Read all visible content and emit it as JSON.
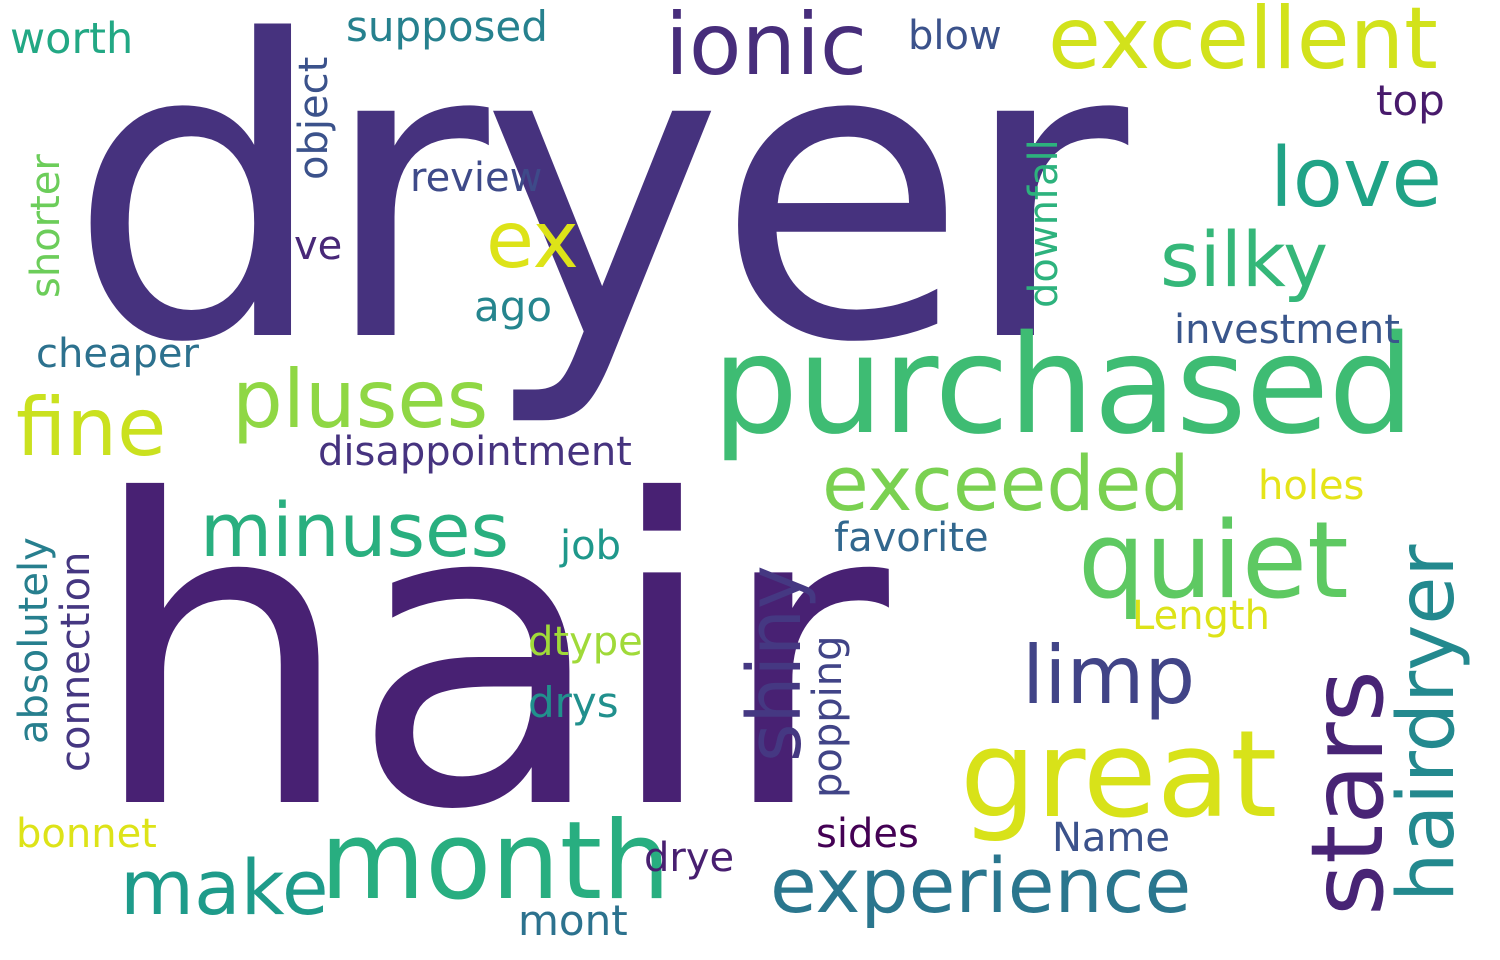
{
  "words": [
    {
      "id": "dryer",
      "text": "dryer",
      "color": "#46327e",
      "orientation": "horizontal"
    },
    {
      "id": "hair",
      "text": "hair",
      "color": "#482173",
      "orientation": "horizontal"
    },
    {
      "id": "purchased",
      "text": "purchased",
      "color": "#3ebc73",
      "orientation": "horizontal"
    },
    {
      "id": "ionic",
      "text": "ionic",
      "color": "#472d7b",
      "orientation": "horizontal"
    },
    {
      "id": "excellent",
      "text": "excellent",
      "color": "#d2e21b",
      "orientation": "horizontal"
    },
    {
      "id": "blow",
      "text": "blow",
      "color": "#3b528b",
      "orientation": "horizontal"
    },
    {
      "id": "supposed",
      "text": "supposed",
      "color": "#26818e",
      "orientation": "horizontal"
    },
    {
      "id": "worth",
      "text": "worth",
      "color": "#22a884",
      "orientation": "horizontal"
    },
    {
      "id": "object",
      "text": "object",
      "color": "#3b528b",
      "orientation": "vertical"
    },
    {
      "id": "top",
      "text": "top",
      "color": "#481a6c",
      "orientation": "horizontal"
    },
    {
      "id": "love",
      "text": "love",
      "color": "#20a386",
      "orientation": "horizontal"
    },
    {
      "id": "review",
      "text": "review",
      "color": "#3e4a89",
      "orientation": "horizontal"
    },
    {
      "id": "ex",
      "text": "ex",
      "color": "#dde318",
      "orientation": "horizontal"
    },
    {
      "id": "silky",
      "text": "silky",
      "color": "#35b779",
      "orientation": "horizontal"
    },
    {
      "id": "shorter",
      "text": "shorter",
      "color": "#6ccd5a",
      "orientation": "vertical"
    },
    {
      "id": "downfall",
      "text": "downfall",
      "color": "#2db27d",
      "orientation": "vertical"
    },
    {
      "id": "ve",
      "text": "ve",
      "color": "#482878",
      "orientation": "horizontal"
    },
    {
      "id": "ago",
      "text": "ago",
      "color": "#25858e",
      "orientation": "horizontal"
    },
    {
      "id": "investment",
      "text": "investment",
      "color": "#39568c",
      "orientation": "horizontal"
    },
    {
      "id": "cheaper",
      "text": "cheaper",
      "color": "#2c718e",
      "orientation": "horizontal"
    },
    {
      "id": "pluses",
      "text": "pluses",
      "color": "#8fd744",
      "orientation": "horizontal"
    },
    {
      "id": "fine",
      "text": "fine",
      "color": "#cae11f",
      "orientation": "horizontal"
    },
    {
      "id": "disappointment",
      "text": "disappointment",
      "color": "#46337f",
      "orientation": "horizontal"
    },
    {
      "id": "exceeded",
      "text": "exceeded",
      "color": "#7ad151",
      "orientation": "horizontal"
    },
    {
      "id": "holes",
      "text": "holes",
      "color": "#e5e419",
      "orientation": "horizontal"
    },
    {
      "id": "minuses",
      "text": "minuses",
      "color": "#29af7f",
      "orientation": "horizontal"
    },
    {
      "id": "quiet",
      "text": "quiet",
      "color": "#5ec962",
      "orientation": "horizontal"
    },
    {
      "id": "favorite",
      "text": "favorite",
      "color": "#31678e",
      "orientation": "horizontal"
    },
    {
      "id": "absolutely",
      "text": "absolutely",
      "color": "#277f8e",
      "orientation": "vertical"
    },
    {
      "id": "connection",
      "text": "connection",
      "color": "#453781",
      "orientation": "vertical"
    },
    {
      "id": "job",
      "text": "job",
      "color": "#1f988b",
      "orientation": "horizontal"
    },
    {
      "id": "shiny",
      "text": "shiny",
      "color": "#453882",
      "orientation": "vertical"
    },
    {
      "id": "hairdryer",
      "text": "hairdryer",
      "color": "#23898e",
      "orientation": "vertical"
    },
    {
      "id": "length",
      "text": "Length",
      "color": "#dde318",
      "orientation": "horizontal"
    },
    {
      "id": "stars",
      "text": "stars",
      "color": "#482475",
      "orientation": "vertical"
    },
    {
      "id": "dtype",
      "text": "dtype",
      "color": "#a0da39",
      "orientation": "horizontal"
    },
    {
      "id": "limp",
      "text": "limp",
      "color": "#414487",
      "orientation": "horizontal"
    },
    {
      "id": "popping",
      "text": "popping",
      "color": "#414487",
      "orientation": "vertical"
    },
    {
      "id": "drys",
      "text": "drys",
      "color": "#21908d",
      "orientation": "horizontal"
    },
    {
      "id": "great",
      "text": "great",
      "color": "#d8e219",
      "orientation": "horizontal"
    },
    {
      "id": "make",
      "text": "make",
      "color": "#1e9b8a",
      "orientation": "horizontal"
    },
    {
      "id": "month",
      "text": "month",
      "color": "#28ae80",
      "orientation": "horizontal"
    },
    {
      "id": "bonnet",
      "text": "bonnet",
      "color": "#dde318",
      "orientation": "horizontal"
    },
    {
      "id": "sides",
      "text": "sides",
      "color": "#440154",
      "orientation": "horizontal"
    },
    {
      "id": "name",
      "text": "Name",
      "color": "#3b528b",
      "orientation": "horizontal"
    },
    {
      "id": "experience",
      "text": "experience",
      "color": "#2a768e",
      "orientation": "horizontal"
    },
    {
      "id": "drye",
      "text": "drye",
      "color": "#481f70",
      "orientation": "horizontal"
    },
    {
      "id": "mont",
      "text": "mont",
      "color": "#2c728e",
      "orientation": "horizontal"
    }
  ]
}
